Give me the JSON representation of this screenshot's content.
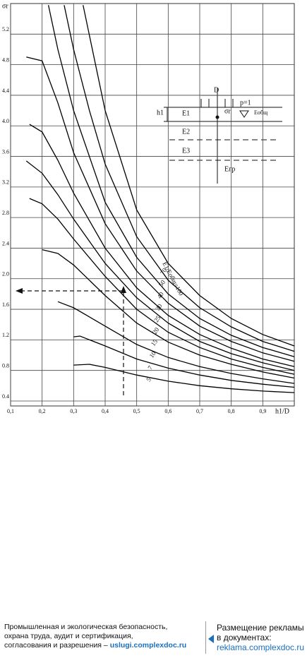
{
  "chart_data": {
    "type": "line",
    "ylabel": "σr",
    "xlabel": "h1/D",
    "xlim": [
      0.1,
      1.0
    ],
    "ylim": [
      0.4,
      5.6
    ],
    "xticks": [
      {
        "value": 0.1,
        "label": "0,1"
      },
      {
        "value": 0.2,
        "label": "0,2"
      },
      {
        "value": 0.3,
        "label": "0,3"
      },
      {
        "value": 0.4,
        "label": "0,4"
      },
      {
        "value": 0.5,
        "label": "0,5"
      },
      {
        "value": 0.6,
        "label": "0,6"
      },
      {
        "value": 0.7,
        "label": "0,7"
      },
      {
        "value": 0.8,
        "label": "0,8"
      },
      {
        "value": 0.9,
        "label": "0,9"
      }
    ],
    "yticks": [
      0.4,
      0.8,
      1.2,
      1.6,
      {
        "value": 2.0,
        "label": "2.0"
      },
      2.4,
      2.8,
      3.2,
      3.6,
      {
        "value": 4.0,
        "label": "4.0"
      },
      4.4,
      4.8,
      5.2
    ],
    "grid": true,
    "series": [
      {
        "name": "5",
        "color": "#000",
        "x": [
          0.3,
          0.35,
          0.4,
          0.5,
          0.6,
          0.7,
          0.8,
          0.9,
          1.0
        ],
        "values": [
          0.87,
          0.88,
          0.84,
          0.74,
          0.66,
          0.6,
          0.56,
          0.53,
          0.51
        ]
      },
      {
        "name": "7",
        "color": "#000",
        "x": [
          0.3,
          0.32,
          0.4,
          0.5,
          0.6,
          0.7,
          0.8,
          0.9,
          1.0
        ],
        "values": [
          1.24,
          1.25,
          1.12,
          0.95,
          0.83,
          0.74,
          0.67,
          0.62,
          0.58
        ]
      },
      {
        "name": "10",
        "color": "#000",
        "x": [
          0.25,
          0.3,
          0.4,
          0.5,
          0.6,
          0.7,
          0.8,
          0.9,
          1.0
        ],
        "values": [
          1.7,
          1.62,
          1.38,
          1.14,
          0.97,
          0.85,
          0.76,
          0.69,
          0.63
        ]
      },
      {
        "name": "15",
        "color": "#000",
        "x": [
          0.2,
          0.25,
          0.3,
          0.4,
          0.5,
          0.6,
          0.7,
          0.8,
          0.9,
          1.0
        ],
        "values": [
          2.38,
          2.33,
          2.18,
          1.78,
          1.42,
          1.17,
          1.0,
          0.88,
          0.78,
          0.7
        ]
      },
      {
        "name": "20",
        "color": "#000",
        "x": [
          0.16,
          0.2,
          0.25,
          0.3,
          0.4,
          0.5,
          0.6,
          0.7,
          0.8,
          0.9,
          1.0
        ],
        "values": [
          3.05,
          2.98,
          2.78,
          2.52,
          2.03,
          1.6,
          1.3,
          1.1,
          0.95,
          0.84,
          0.75
        ]
      },
      {
        "name": "25",
        "color": "#000",
        "x": [
          0.15,
          0.2,
          0.25,
          0.3,
          0.4,
          0.5,
          0.6,
          0.7,
          0.8,
          0.9,
          1.0
        ],
        "values": [
          3.54,
          3.38,
          3.1,
          2.78,
          2.2,
          1.75,
          1.42,
          1.18,
          1.02,
          0.9,
          0.8
        ]
      },
      {
        "name": "30",
        "color": "#000",
        "x": [
          0.16,
          0.2,
          0.25,
          0.3,
          0.4,
          0.5,
          0.6,
          0.7,
          0.8,
          0.9,
          1.0
        ],
        "values": [
          4.02,
          3.92,
          3.55,
          3.12,
          2.4,
          1.88,
          1.52,
          1.27,
          1.09,
          0.95,
          0.85
        ]
      },
      {
        "name": "40",
        "color": "#000",
        "x": [
          0.15,
          0.2,
          0.25,
          0.3,
          0.4,
          0.5,
          0.6,
          0.7,
          0.8,
          0.9,
          1.0
        ],
        "values": [
          4.9,
          4.85,
          4.3,
          3.65,
          2.72,
          2.1,
          1.68,
          1.38,
          1.18,
          1.03,
          0.92
        ]
      },
      {
        "name": "50",
        "color": "#000",
        "x": [
          0.22,
          0.25,
          0.3,
          0.4,
          0.5,
          0.6,
          0.7,
          0.8,
          0.9,
          1.0
        ],
        "values": [
          5.58,
          5.0,
          4.2,
          3.0,
          2.28,
          1.8,
          1.48,
          1.26,
          1.1,
          0.98
        ]
      },
      {
        "name": "70",
        "color": "#000",
        "x": [
          0.27,
          0.3,
          0.35,
          0.4,
          0.5,
          0.6,
          0.7,
          0.8,
          0.9,
          1.0
        ],
        "values": [
          5.58,
          5.0,
          4.2,
          3.5,
          2.55,
          1.98,
          1.62,
          1.37,
          1.18,
          1.05
        ]
      },
      {
        "name": "E1/Eобщ=100",
        "color": "#000",
        "x": [
          0.33,
          0.4,
          0.5,
          0.6,
          0.7,
          0.8,
          0.9,
          1.0
        ],
        "values": [
          5.58,
          4.2,
          2.9,
          2.2,
          1.78,
          1.48,
          1.27,
          1.12
        ]
      }
    ],
    "inset_labels": {
      "d": "D",
      "p": "p=1",
      "h": "h1",
      "e1": "E1",
      "sigma": "σr",
      "eobsh": "Eобщ",
      "e2": "E2",
      "e3": "E3",
      "egr": "Eгр"
    }
  },
  "footer": {
    "left_lines": [
      "Промышленная и экологическая безопасность,",
      "охрана труда, аудит и сертификация,",
      "согласования и разрешения –"
    ],
    "left_link": "uslugi.complexdoc.ru",
    "right_lines": [
      "Размещение рекламы",
      "в документах:"
    ],
    "right_link": "reklama.complexdoc.ru"
  }
}
